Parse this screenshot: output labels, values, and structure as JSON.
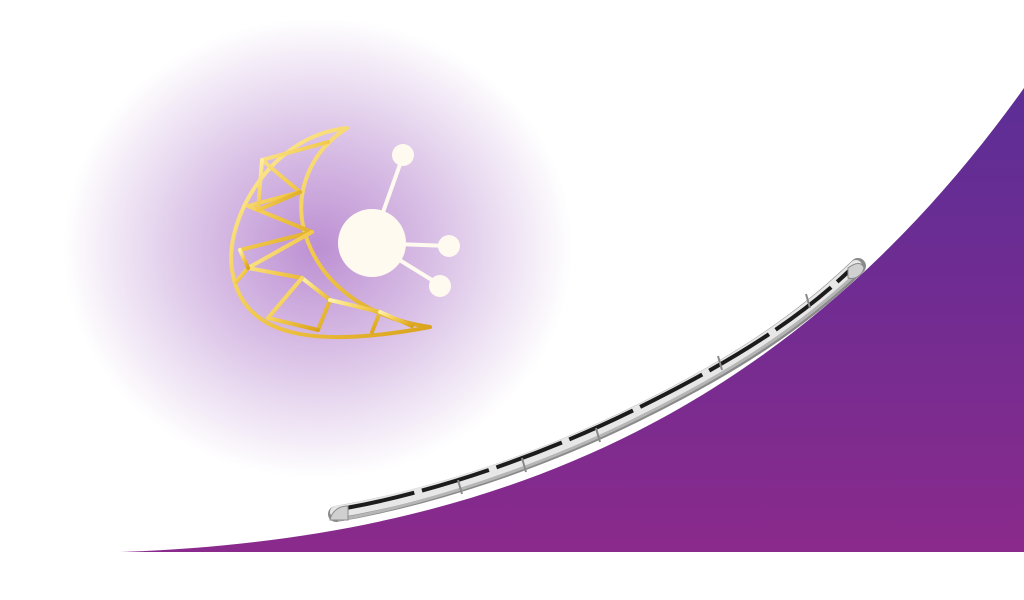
{
  "scene": {
    "background": "#ffffff",
    "glow_color": "#b98ad0",
    "hill_colors": [
      "#5c2e96",
      "#8a2a8c"
    ],
    "moon_colors": [
      "#fff1a8",
      "#f2c94c",
      "#d9a21b"
    ],
    "node_color": "#fffaf0",
    "train_colors": {
      "body": "#e7e7e7",
      "shade": "#b6b6b6",
      "window": "#1c1c1c",
      "outline": "#8a8a8a"
    },
    "icons": [
      "crescent-moon-icon",
      "network-node-icon",
      "high-speed-train-icon"
    ]
  }
}
